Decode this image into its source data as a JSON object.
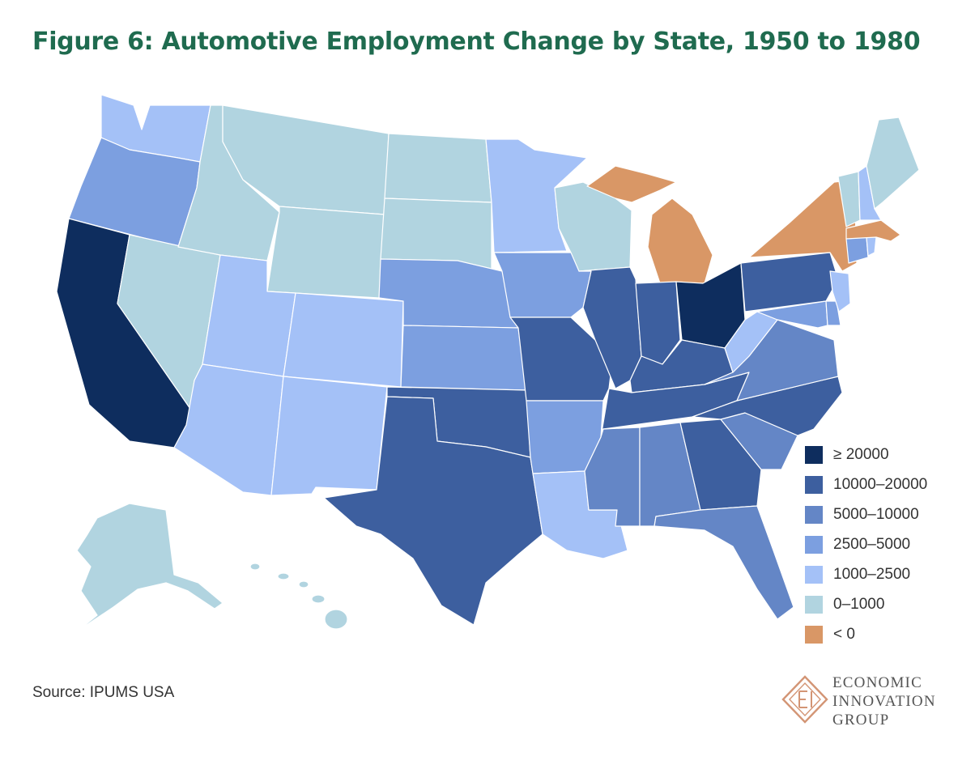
{
  "title": "Figure 6: Automotive Employment Change by State, 1950 to 1980",
  "source": "Source: IPUMS USA",
  "logo": {
    "line1": "ECONOMIC",
    "line2": "INNOVATION",
    "line3": "GROUP"
  },
  "colors": {
    "ge20000": "#0e2d5e",
    "10000_20000": "#3d5f9f",
    "5000_10000": "#6486c6",
    "2500_5000": "#7c9fe0",
    "1000_2500": "#a4c1f7",
    "0_1000": "#b1d4e0",
    "lt0": "#d99766",
    "title_green": "#1f6b4f",
    "logo_copper": "#d39575"
  },
  "legend": [
    {
      "label": "≥ 20000",
      "color": "#0e2d5e"
    },
    {
      "label": "10000–20000",
      "color": "#3d5f9f"
    },
    {
      "label": "5000–10000",
      "color": "#6486c6"
    },
    {
      "label": "2500–5000",
      "color": "#7c9fe0"
    },
    {
      "label": "1000–2500",
      "color": "#a4c1f7"
    },
    {
      "label": "0–1000",
      "color": "#b1d4e0"
    },
    {
      "label": "< 0",
      "color": "#d99766"
    }
  ],
  "states": {
    "WA": "1000-2500",
    "OR": "2500-5000",
    "CA": ">=20000",
    "NV": "0-1000",
    "ID": "0-1000",
    "MT": "0-1000",
    "WY": "0-1000",
    "UT": "1000-2500",
    "AZ": "1000-2500",
    "CO": "1000-2500",
    "NM": "1000-2500",
    "ND": "0-1000",
    "SD": "0-1000",
    "NE": "2500-5000",
    "KS": "2500-5000",
    "OK": "10000-20000",
    "TX": "10000-20000",
    "MN": "1000-2500",
    "IA": "2500-5000",
    "MO": "10000-20000",
    "AR": "2500-5000",
    "LA": "1000-2500",
    "WI": "0-1000",
    "IL": "10000-20000",
    "MI": "<0",
    "IN": "10000-20000",
    "OH": ">=20000",
    "KY": "10000-20000",
    "TN": "10000-20000",
    "MS": "5000-10000",
    "AL": "5000-10000",
    "GA": "10000-20000",
    "FL": "5000-10000",
    "SC": "5000-10000",
    "NC": "10000-20000",
    "VA": "5000-10000",
    "WV": "1000-2500",
    "PA": "10000-20000",
    "NY": "<0",
    "VT": "0-1000",
    "NH": "1000-2500",
    "ME": "0-1000",
    "MA": "<0",
    "CT": "2500-5000",
    "RI": "1000-2500",
    "NJ": "1000-2500",
    "DE": "2500-5000",
    "MD": "2500-5000",
    "AK": "0-1000",
    "HI": "0-1000"
  }
}
